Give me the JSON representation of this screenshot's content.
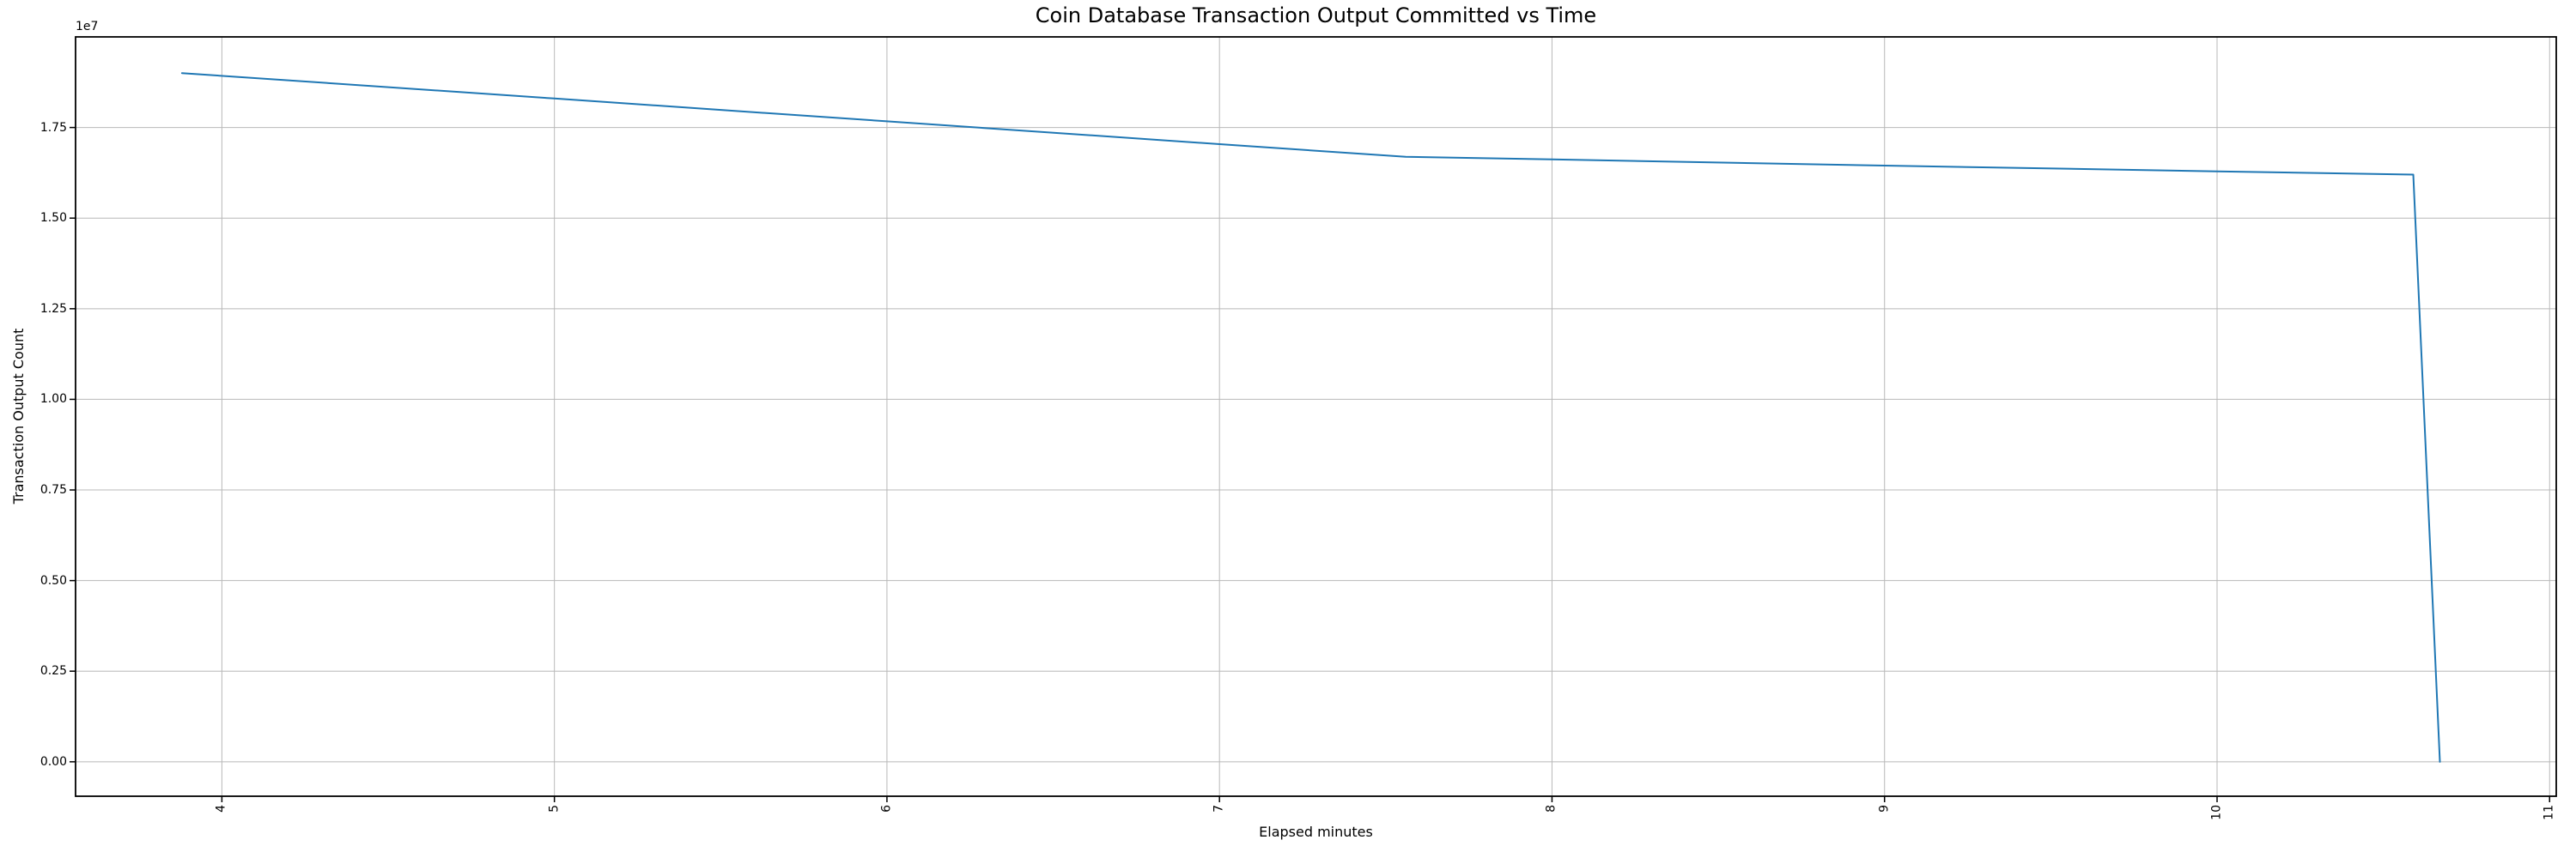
{
  "chart_data": {
    "type": "line",
    "title": "Coin Database Transaction Output Committed vs Time",
    "xlabel": "Elapsed minutes",
    "ylabel": "Transaction Output Count",
    "y_offset_text": "1e7",
    "xlim": [
      3.56,
      11.02
    ],
    "ylim": [
      -950000,
      20000000
    ],
    "x_ticks": [
      4,
      5,
      6,
      7,
      8,
      9,
      10,
      11
    ],
    "x_tick_labels": [
      "4",
      "5",
      "6",
      "7",
      "8",
      "9",
      "10",
      "11"
    ],
    "y_ticks": [
      0,
      2500000,
      5000000,
      7500000,
      10000000,
      12500000,
      15000000,
      17500000
    ],
    "y_tick_labels": [
      "0.00",
      "0.25",
      "0.50",
      "0.75",
      "1.00",
      "1.25",
      "1.50",
      "1.75"
    ],
    "grid": true,
    "legend": "none",
    "colors": {
      "line": "#1f77b4",
      "grid": "#b8b8b8",
      "spine": "#000000",
      "text": "#000000",
      "background": "#ffffff"
    },
    "series": [
      {
        "name": "transaction-output-count",
        "points": [
          [
            3.88,
            19000000
          ],
          [
            5.0,
            18300000
          ],
          [
            6.0,
            17670000
          ],
          [
            7.0,
            17040000
          ],
          [
            7.56,
            16690000
          ],
          [
            8.0,
            16620000
          ],
          [
            9.0,
            16450000
          ],
          [
            10.0,
            16290000
          ],
          [
            10.59,
            16200000
          ],
          [
            10.67,
            0
          ]
        ]
      }
    ]
  }
}
